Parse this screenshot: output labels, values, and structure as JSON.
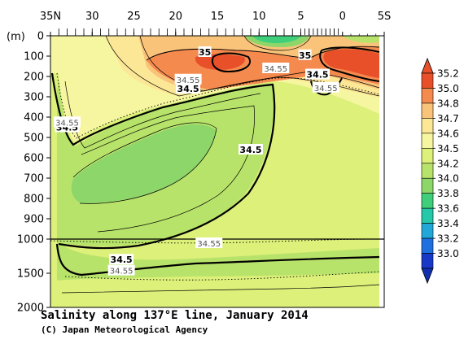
{
  "chart_data": {
    "type": "contour",
    "title": "Salinity along 137°E line, January 2014",
    "credit": "(C) Japan Meteorological Agency",
    "x_axis": {
      "ticks": [
        "35N",
        "30",
        "25",
        "20",
        "15",
        "10",
        "5",
        "0",
        "5S"
      ],
      "tick_values": [
        35,
        30,
        25,
        20,
        15,
        10,
        5,
        0,
        -5
      ],
      "range": [
        35,
        -5
      ]
    },
    "y_axis": {
      "unit": "(m)",
      "ticks": [
        "0",
        "100",
        "200",
        "300",
        "400",
        "500",
        "600",
        "700",
        "800",
        "900",
        "1000",
        "1500",
        "2000"
      ],
      "tick_values": [
        0,
        100,
        200,
        300,
        400,
        500,
        600,
        700,
        800,
        900,
        1000,
        1500,
        2000
      ],
      "break_depth": 1000,
      "range": [
        0,
        2000
      ]
    },
    "colorbar": {
      "levels": [
        "35.2",
        "35.0",
        "34.8",
        "34.7",
        "34.6",
        "34.5",
        "34.2",
        "34.0",
        "33.8",
        "33.6",
        "33.4",
        "33.2",
        "33.0"
      ],
      "colors": [
        "#e8502a",
        "#f58a4e",
        "#f9c47a",
        "#fce796",
        "#f7f6a0",
        "#dcf07a",
        "#b8e36a",
        "#8cd66a",
        "#3fcf7a",
        "#25c8a8",
        "#22a8d8",
        "#1e6fe0",
        "#1838c8"
      ]
    },
    "contour_labels": [
      {
        "text": "35",
        "lat": 16.5,
        "depth": 80,
        "style": "solid"
      },
      {
        "text": "35",
        "lat": 4.5,
        "depth": 95,
        "style": "solid"
      },
      {
        "text": "34.5",
        "lat": 18.5,
        "depth": 260,
        "style": "solid"
      },
      {
        "text": "34.55",
        "lat": 18.5,
        "depth": 215,
        "style": "dotted"
      },
      {
        "text": "34.55",
        "lat": 8.0,
        "depth": 160,
        "style": "dotted"
      },
      {
        "text": "34.5",
        "lat": 3.0,
        "depth": 190,
        "style": "solid"
      },
      {
        "text": "34.55",
        "lat": 2.0,
        "depth": 255,
        "style": "dotted"
      },
      {
        "text": "34.5",
        "lat": 33.0,
        "depth": 450,
        "style": "solid"
      },
      {
        "text": "34.55",
        "lat": 33.0,
        "depth": 425,
        "style": "dotted"
      },
      {
        "text": "34.5",
        "lat": 11.0,
        "depth": 560,
        "style": "solid"
      },
      {
        "text": "34.55",
        "lat": 16.0,
        "depth": 1060,
        "style": "dotted"
      },
      {
        "text": "34.5",
        "lat": 26.5,
        "depth": 1300,
        "style": "solid"
      },
      {
        "text": "34.55",
        "lat": 26.5,
        "depth": 1460,
        "style": "dotted"
      }
    ]
  }
}
